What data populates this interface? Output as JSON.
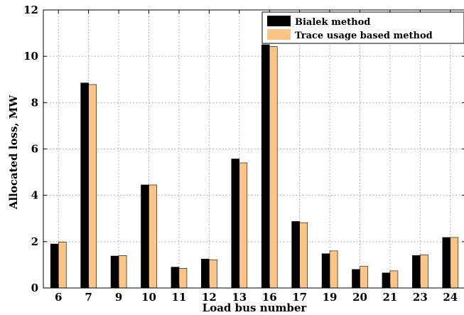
{
  "chart_data": {
    "type": "bar",
    "xlabel": "Load bus number",
    "ylabel": "Allocated loss, MW",
    "ylim": [
      0,
      12
    ],
    "yticks": [
      0,
      2,
      4,
      6,
      8,
      10,
      12
    ],
    "grid": true,
    "legend_position": "top-right",
    "categories": [
      "6",
      "7",
      "9",
      "10",
      "11",
      "12",
      "13",
      "16",
      "17",
      "19",
      "20",
      "21",
      "23",
      "24"
    ],
    "series": [
      {
        "name": "Bialek method",
        "color": "#000000",
        "values": [
          1.9,
          8.85,
          1.38,
          4.45,
          0.9,
          1.25,
          5.57,
          10.5,
          2.87,
          1.48,
          0.8,
          0.65,
          1.4,
          2.18
        ]
      },
      {
        "name": "Trace usage based method",
        "color": "#fcc586",
        "values": [
          1.98,
          8.78,
          1.4,
          4.45,
          0.85,
          1.22,
          5.4,
          10.42,
          2.82,
          1.6,
          0.93,
          0.74,
          1.43,
          2.18
        ]
      }
    ]
  }
}
